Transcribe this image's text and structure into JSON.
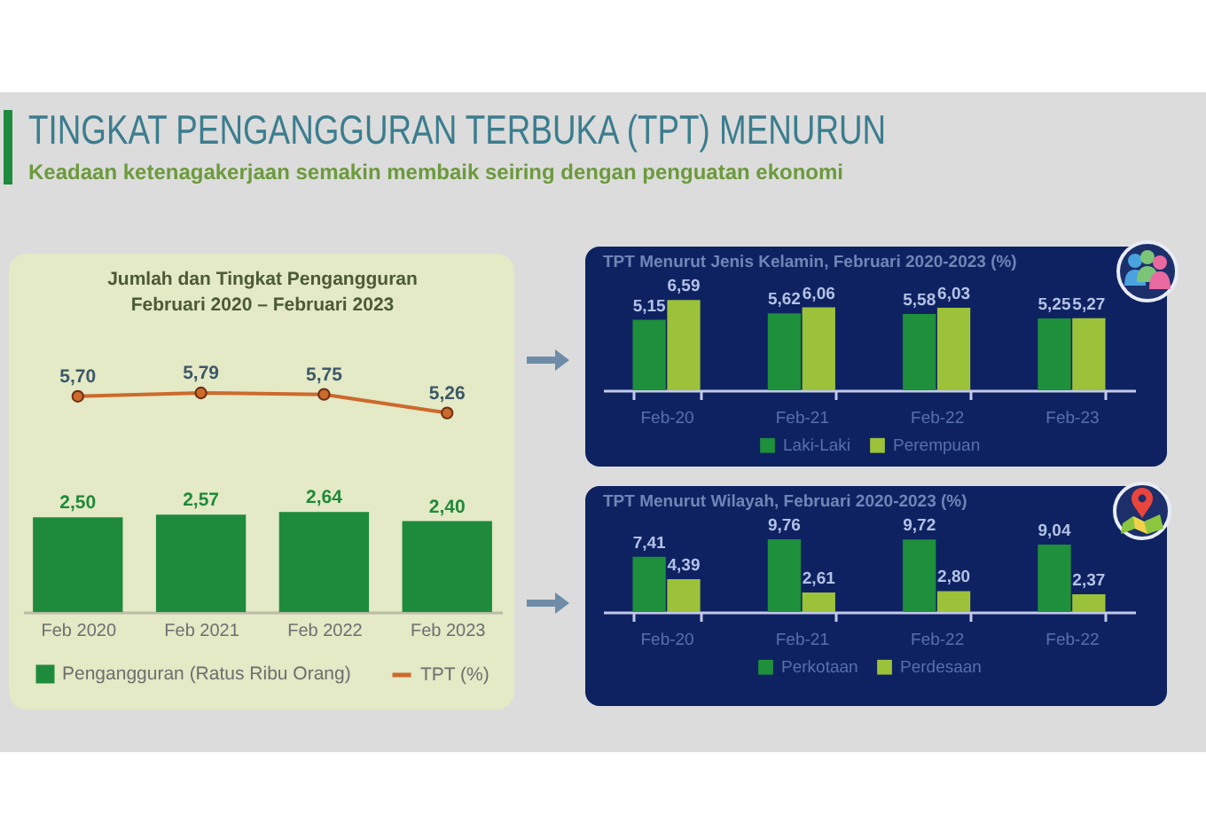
{
  "chart_data": [
    {
      "type": "other",
      "title": "TINGKAT PENGANGGURAN TERBUKA (TPT) MENURUN",
      "subtitle": "Keadaan ketenagakerjaan semakin membaik seiring dengan penguatan ekonomi"
    },
    {
      "type": "bar",
      "title": "Jumlah dan Tingkat Pengangguran",
      "subtitle": "Februari 2020 – Februari 2023",
      "categories": [
        "Feb 2020",
        "Feb 2021",
        "Feb 2022",
        "Feb 2023"
      ],
      "series": [
        {
          "name": "Pengangguran (Ratus Ribu Orang)",
          "type": "bar",
          "color": "#1e8a3c",
          "values": [
            2.5,
            2.57,
            2.64,
            2.4
          ],
          "value_labels": [
            "2,50",
            "2,57",
            "2,64",
            "2,40"
          ]
        },
        {
          "name": "TPT (%)",
          "type": "line",
          "color": "#cc6a2c",
          "values": [
            5.7,
            5.79,
            5.75,
            5.26
          ],
          "value_labels": [
            "5,70",
            "5,79",
            "5,75",
            "5,26"
          ]
        }
      ],
      "marker": "circle",
      "legend": "bottom",
      "tick_labels": "x"
    },
    {
      "type": "bar",
      "title": "TPT Menurut Jenis Kelamin, Februari 2020-2023 (%)",
      "categories": [
        "Feb-20",
        "Feb-21",
        "Feb-22",
        "Feb-23"
      ],
      "series": [
        {
          "name": "Laki-Laki",
          "color": "#1e8f3a",
          "values": [
            5.15,
            5.62,
            5.58,
            5.25
          ],
          "value_labels": [
            "5,15",
            "5,62",
            "5,58",
            "5,25"
          ]
        },
        {
          "name": "Perempuan",
          "color": "#9cc23a",
          "values": [
            6.59,
            6.06,
            6.03,
            5.27
          ],
          "value_labels": [
            "6,59",
            "6,06",
            "6,03",
            "5,27"
          ]
        }
      ],
      "legend": "bottom",
      "tick_labels": "x"
    },
    {
      "type": "bar",
      "title": "TPT Menurut Wilayah, Februari 2020-2023 (%)",
      "categories": [
        "Feb-20",
        "Feb-21",
        "Feb-22",
        "Feb-22"
      ],
      "series": [
        {
          "name": "Perkotaan",
          "color": "#1e8f3a",
          "values": [
            7.41,
            9.76,
            9.72,
            9.04
          ],
          "value_labels": [
            "7,41",
            "9,76",
            "9,72",
            "9,04"
          ]
        },
        {
          "name": "Perdesaan",
          "color": "#9cc23a",
          "values": [
            4.39,
            2.61,
            2.8,
            2.37
          ],
          "value_labels": [
            "4,39",
            "2,61",
            "2,80",
            "2,37"
          ]
        }
      ],
      "legend": "bottom",
      "tick_labels": "x"
    }
  ]
}
